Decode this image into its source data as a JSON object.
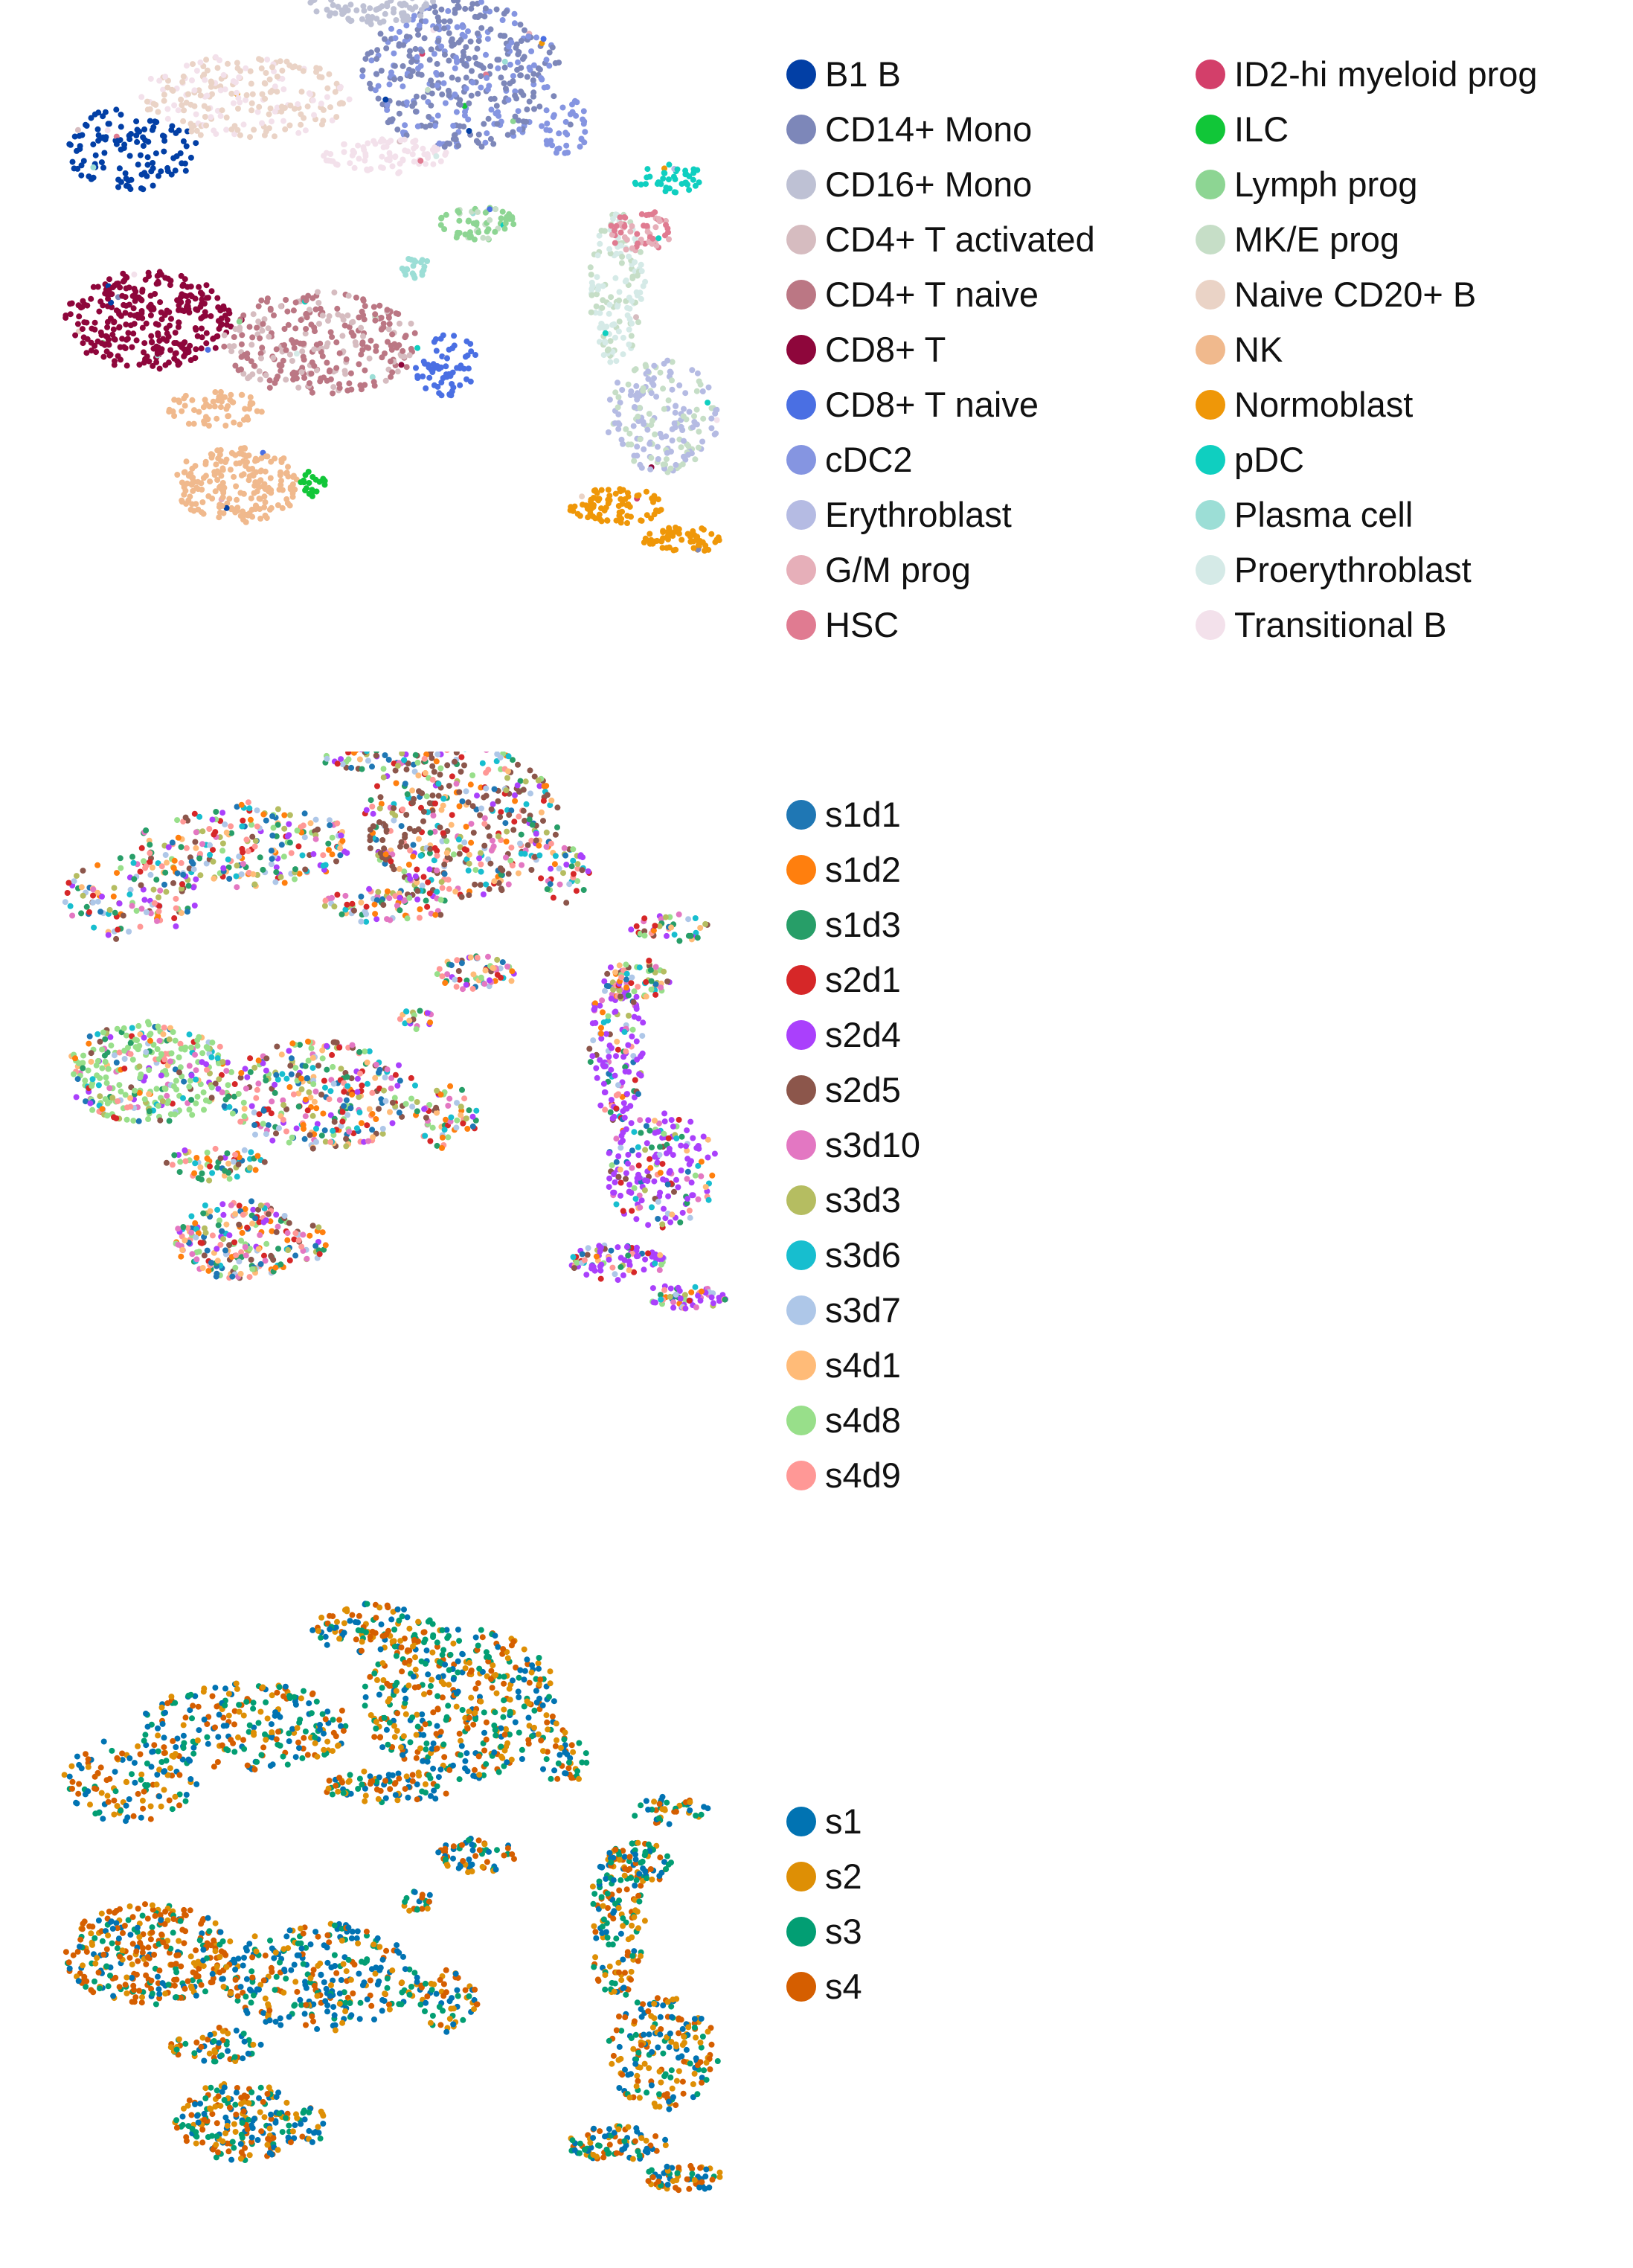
{
  "chart_data": [
    {
      "type": "scatter",
      "title": "",
      "xlabel": "",
      "ylabel": "",
      "grid": false,
      "legend_placement": "right",
      "legend_columns": 2,
      "series": [
        {
          "name": "B1 B",
          "color": "#023fa5"
        },
        {
          "name": "CD14+ Mono",
          "color": "#7d87b9"
        },
        {
          "name": "CD16+ Mono",
          "color": "#bec1d4"
        },
        {
          "name": "CD4+ T activated",
          "color": "#d6bcc0"
        },
        {
          "name": "CD4+ T naive",
          "color": "#bb7784"
        },
        {
          "name": "CD8+ T",
          "color": "#8e063b"
        },
        {
          "name": "CD8+ T naive",
          "color": "#4a6fe3"
        },
        {
          "name": "cDC2",
          "color": "#8595e1"
        },
        {
          "name": "Erythroblast",
          "color": "#b5bbe3"
        },
        {
          "name": "G/M prog",
          "color": "#e6afb9"
        },
        {
          "name": "HSC",
          "color": "#e07b91"
        },
        {
          "name": "ID2-hi myeloid prog",
          "color": "#d33f6a"
        },
        {
          "name": "ILC",
          "color": "#11c638"
        },
        {
          "name": "Lymph prog",
          "color": "#8dd593"
        },
        {
          "name": "MK/E prog",
          "color": "#c6dec7"
        },
        {
          "name": "Naive CD20+ B",
          "color": "#ead3c6"
        },
        {
          "name": "NK",
          "color": "#f0b98d"
        },
        {
          "name": "Normoblast",
          "color": "#ef9708"
        },
        {
          "name": "pDC",
          "color": "#0fcfc0"
        },
        {
          "name": "Plasma cell",
          "color": "#9cded6"
        },
        {
          "name": "Proerythroblast",
          "color": "#d5eae7"
        },
        {
          "name": "Transitional B",
          "color": "#f3e1eb"
        }
      ]
    },
    {
      "type": "scatter",
      "title": "",
      "xlabel": "",
      "ylabel": "",
      "grid": false,
      "legend_placement": "right",
      "legend_columns": 1,
      "series": [
        {
          "name": "s1d1",
          "color": "#1f77b4"
        },
        {
          "name": "s1d2",
          "color": "#ff7f0e"
        },
        {
          "name": "s1d3",
          "color": "#279e68"
        },
        {
          "name": "s2d1",
          "color": "#d62728"
        },
        {
          "name": "s2d4",
          "color": "#aa40fc"
        },
        {
          "name": "s2d5",
          "color": "#8c564b"
        },
        {
          "name": "s3d10",
          "color": "#e377c2"
        },
        {
          "name": "s3d3",
          "color": "#b5bd61"
        },
        {
          "name": "s3d6",
          "color": "#17becf"
        },
        {
          "name": "s3d7",
          "color": "#aec7e8"
        },
        {
          "name": "s4d1",
          "color": "#ffbb78"
        },
        {
          "name": "s4d8",
          "color": "#98df8a"
        },
        {
          "name": "s4d9",
          "color": "#ff9896"
        }
      ]
    },
    {
      "type": "scatter",
      "title": "",
      "xlabel": "",
      "ylabel": "",
      "grid": false,
      "legend_placement": "right",
      "legend_columns": 1,
      "series": [
        {
          "name": "s1",
          "color": "#0173b2"
        },
        {
          "name": "s2",
          "color": "#de8f05"
        },
        {
          "name": "s3",
          "color": "#029e73"
        },
        {
          "name": "s4",
          "color": "#d55e00"
        }
      ]
    }
  ]
}
